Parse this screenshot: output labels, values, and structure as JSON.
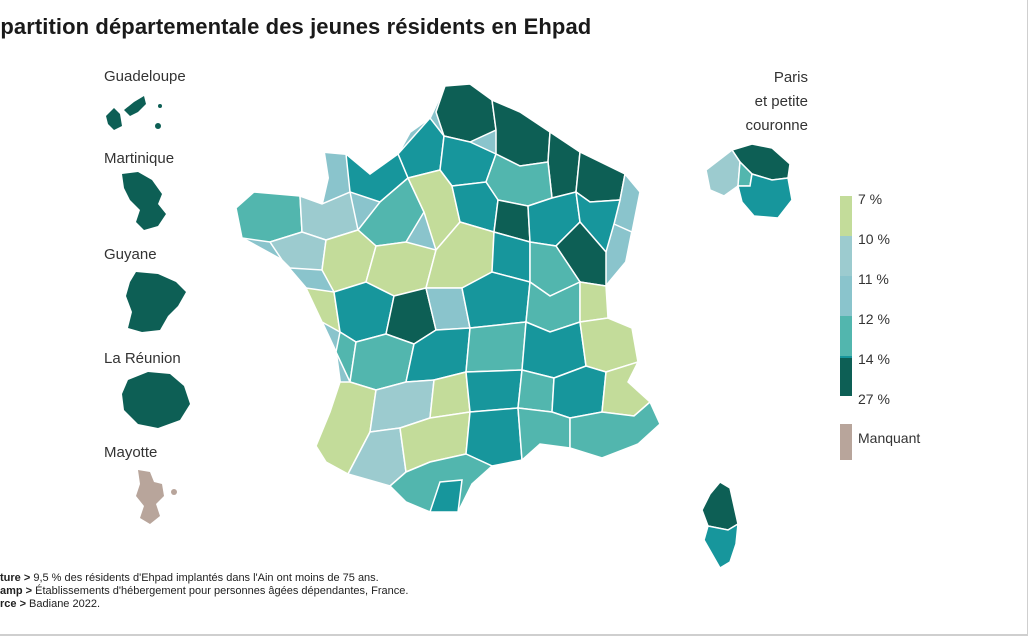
{
  "title": "épartition départementale des jeunes résidents en Ehpad",
  "insets": {
    "guadeloupe": "Guadeloupe",
    "martinique": "Martinique",
    "guyane": "Guyane",
    "reunion": "La Réunion",
    "mayotte": "Mayotte",
    "paris_line1": "Paris",
    "paris_line2": "et petite",
    "paris_line3": "couronne"
  },
  "legend": {
    "bins": [
      "7 %",
      "10 %",
      "11 %",
      "12 %",
      "14 %",
      "27 %"
    ],
    "missing": "Manquant",
    "colors": [
      "#c3dc9a",
      "#9ccbcf",
      "#8ac4cc",
      "#52b6ae",
      "#17969c",
      "#0d5f55"
    ],
    "missing_color": "#b8a59b"
  },
  "footnotes": {
    "lecture_key": "ture >",
    "lecture_text": " 9,5 % des résidents d'Ehpad implantés dans l'Ain ont moins de 75 ans.",
    "champ_key": "amp >",
    "champ_text": " Établissements d'hébergement pour personnes âgées dépendantes, France.",
    "source_key": "rce >",
    "source_text": " Badiane 2022."
  }
}
